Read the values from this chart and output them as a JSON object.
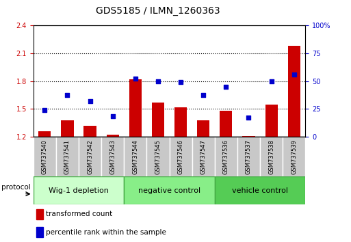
{
  "title": "GDS5185 / ILMN_1260363",
  "samples": [
    "GSM737540",
    "GSM737541",
    "GSM737542",
    "GSM737543",
    "GSM737544",
    "GSM737545",
    "GSM737546",
    "GSM737547",
    "GSM737536",
    "GSM737537",
    "GSM737538",
    "GSM737539"
  ],
  "bar_values": [
    1.26,
    1.38,
    1.32,
    1.22,
    1.82,
    1.57,
    1.52,
    1.38,
    1.48,
    1.21,
    1.55,
    2.18
  ],
  "dot_values": [
    1.49,
    1.65,
    1.58,
    1.42,
    1.83,
    1.8,
    1.79,
    1.65,
    1.74,
    1.41,
    1.8,
    1.87
  ],
  "ylim_left": [
    1.2,
    2.4
  ],
  "yticks_left": [
    1.2,
    1.5,
    1.8,
    2.1,
    2.4
  ],
  "ylim_right": [
    0,
    100
  ],
  "yticks_right": [
    0,
    25,
    50,
    75,
    100
  ],
  "bar_color": "#cc0000",
  "dot_color": "#0000cc",
  "bar_bottom": 1.2,
  "groups": [
    {
      "label": "Wig-1 depletion",
      "start": 0,
      "end": 4,
      "color": "#ccffcc"
    },
    {
      "label": "negative control",
      "start": 4,
      "end": 8,
      "color": "#88ee88"
    },
    {
      "label": "vehicle control",
      "start": 8,
      "end": 12,
      "color": "#55cc55"
    }
  ],
  "protocol_label": "protocol",
  "legend_bar_label": "transformed count",
  "legend_dot_label": "percentile rank within the sample",
  "left_tick_color": "#cc0000",
  "right_tick_color": "#0000cc",
  "sample_box_color": "#c8c8c8",
  "title_fontsize": 10,
  "axis_tick_fontsize": 7,
  "sample_fontsize": 6,
  "group_fontsize": 8,
  "legend_fontsize": 7.5
}
